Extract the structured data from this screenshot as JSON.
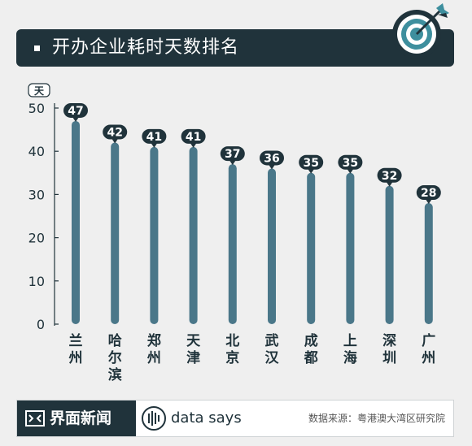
{
  "header": {
    "title": "开办企业耗时天数排名"
  },
  "footer": {
    "brand": "界面新闻",
    "data_says": "data says",
    "source": "数据来源：粤港澳大湾区研究院"
  },
  "colors": {
    "bar": "#4a7789",
    "dark": "#20333b",
    "accent": "#3e8f9e",
    "label_text": "#ffffff"
  },
  "chart_data": {
    "type": "bar",
    "title": "开办企业耗时天数排名",
    "unit_label": "天",
    "categories": [
      "兰州",
      "哈尔滨",
      "郑州",
      "天津",
      "北京",
      "武汉",
      "成都",
      "上海",
      "深圳",
      "广州"
    ],
    "values": [
      47,
      42,
      41,
      41,
      37,
      36,
      35,
      35,
      32,
      28
    ],
    "ylim": [
      0,
      50
    ],
    "yticks": [
      0,
      10,
      20,
      30,
      40,
      50
    ],
    "grid": false,
    "legend": "none"
  }
}
